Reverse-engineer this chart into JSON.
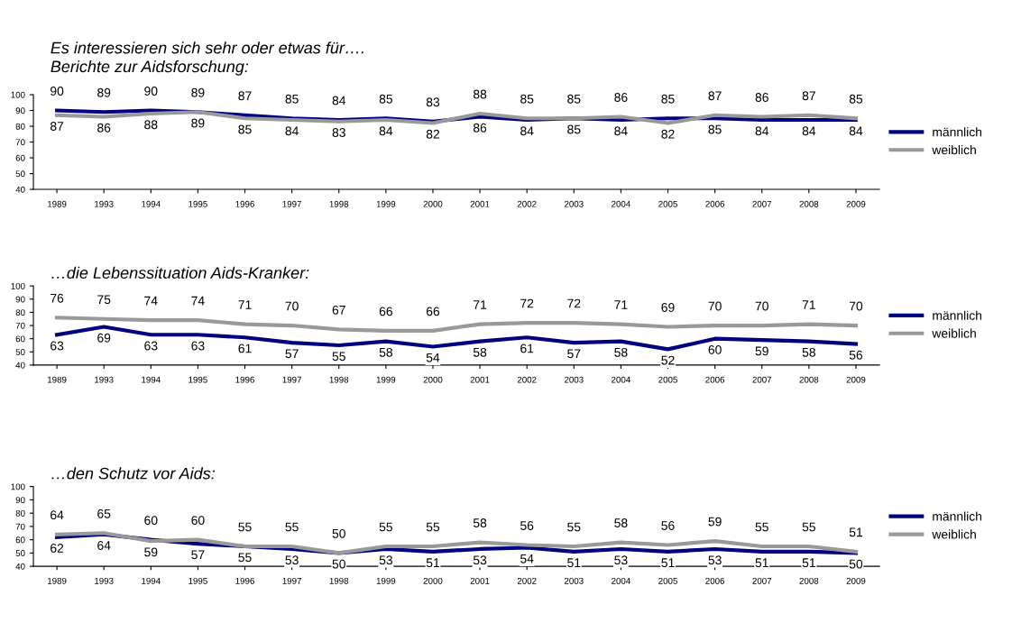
{
  "chart_data": [
    {
      "type": "line",
      "title": "Es interessieren sich sehr oder etwas für….",
      "subtitle": "Berichte zur Aidsforschung:",
      "categories": [
        "1989",
        "1993",
        "1994",
        "1995",
        "1996",
        "1997",
        "1998",
        "1999",
        "2000",
        "2001",
        "2002",
        "2003",
        "2004",
        "2005",
        "2006",
        "2007",
        "2008",
        "2009"
      ],
      "series": [
        {
          "name": "männlich",
          "color": "#000080",
          "values": [
            90,
            89,
            90,
            89,
            87,
            85,
            84,
            85,
            83,
            86,
            84,
            85,
            84,
            85,
            85,
            84,
            84,
            84
          ]
        },
        {
          "name": "weiblich",
          "color": "#999999",
          "values": [
            87,
            86,
            88,
            89,
            85,
            84,
            83,
            84,
            82,
            88,
            85,
            85,
            86,
            82,
            87,
            86,
            87,
            85
          ]
        }
      ],
      "ylim": [
        40,
        100
      ],
      "yticks": [
        40,
        50,
        60,
        70,
        80,
        90,
        100
      ],
      "data_labels": true,
      "legend": "right",
      "grid": false,
      "marker": "none",
      "line_style": "solid"
    },
    {
      "type": "line",
      "title": "…die Lebenssituation Aids-Kranker:",
      "categories": [
        "1989",
        "1993",
        "1994",
        "1995",
        "1996",
        "1997",
        "1998",
        "1999",
        "2000",
        "2001",
        "2002",
        "2003",
        "2004",
        "2005",
        "2006",
        "2007",
        "2008",
        "2009"
      ],
      "series": [
        {
          "name": "männlich",
          "color": "#000080",
          "values": [
            63,
            69,
            63,
            63,
            61,
            57,
            55,
            58,
            54,
            58,
            61,
            57,
            58,
            52,
            60,
            59,
            58,
            56
          ]
        },
        {
          "name": "weiblich",
          "color": "#999999",
          "values": [
            76,
            75,
            74,
            74,
            71,
            70,
            67,
            66,
            66,
            71,
            72,
            72,
            71,
            69,
            70,
            70,
            71,
            70
          ]
        }
      ],
      "ylim": [
        40,
        100
      ],
      "yticks": [
        40,
        50,
        60,
        70,
        80,
        90,
        100
      ],
      "data_labels": true,
      "legend": "right",
      "grid": false,
      "marker": "none",
      "line_style": "solid"
    },
    {
      "type": "line",
      "title": "…den Schutz vor Aids:",
      "categories": [
        "1989",
        "1993",
        "1994",
        "1995",
        "1996",
        "1997",
        "1998",
        "1999",
        "2000",
        "2001",
        "2002",
        "2003",
        "2004",
        "2005",
        "2006",
        "2007",
        "2008",
        "2009"
      ],
      "series": [
        {
          "name": "männlich",
          "color": "#000080",
          "values": [
            62,
            64,
            60,
            57,
            55,
            53,
            50,
            53,
            51,
            53,
            54,
            51,
            53,
            51,
            53,
            51,
            51,
            50
          ]
        },
        {
          "name": "weiblich",
          "color": "#999999",
          "values": [
            64,
            65,
            59,
            60,
            55,
            55,
            50,
            55,
            55,
            58,
            56,
            55,
            58,
            56,
            59,
            55,
            55,
            51
          ]
        }
      ],
      "ylim": [
        40,
        100
      ],
      "yticks": [
        40,
        50,
        60,
        70,
        80,
        90,
        100
      ],
      "data_labels": true,
      "legend": "right",
      "grid": false,
      "marker": "none",
      "line_style": "solid"
    }
  ]
}
